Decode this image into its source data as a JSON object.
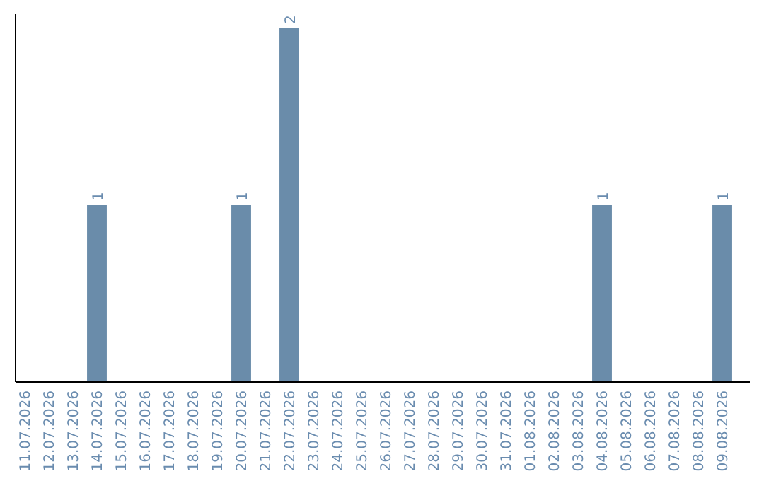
{
  "chart_data": {
    "type": "bar",
    "categories": [
      "11.07.2026",
      "12.07.2026",
      "13.07.2026",
      "14.07.2026",
      "15.07.2026",
      "16.07.2026",
      "17.07.2026",
      "18.07.2026",
      "19.07.2026",
      "20.07.2026",
      "21.07.2026",
      "22.07.2026",
      "23.07.2026",
      "24.07.2026",
      "25.07.2026",
      "26.07.2026",
      "27.07.2026",
      "28.07.2026",
      "29.07.2026",
      "30.07.2026",
      "31.07.2026",
      "01.08.2026",
      "02.08.2026",
      "03.08.2026",
      "04.08.2026",
      "05.08.2026",
      "06.08.2026",
      "07.08.2026",
      "08.08.2026",
      "09.08.2026"
    ],
    "values": [
      0,
      0,
      0,
      1,
      0,
      0,
      0,
      0,
      0,
      1,
      0,
      2,
      0,
      0,
      0,
      0,
      0,
      0,
      0,
      0,
      0,
      0,
      0,
      0,
      1,
      0,
      0,
      0,
      0,
      1
    ],
    "color": "#6a8caa",
    "value_labels": [
      null,
      null,
      null,
      "1",
      null,
      null,
      null,
      null,
      null,
      "1",
      null,
      "2",
      null,
      null,
      null,
      null,
      null,
      null,
      null,
      null,
      null,
      null,
      null,
      null,
      "1",
      null,
      null,
      null,
      null,
      "1"
    ],
    "tick_labels": "x"
  }
}
